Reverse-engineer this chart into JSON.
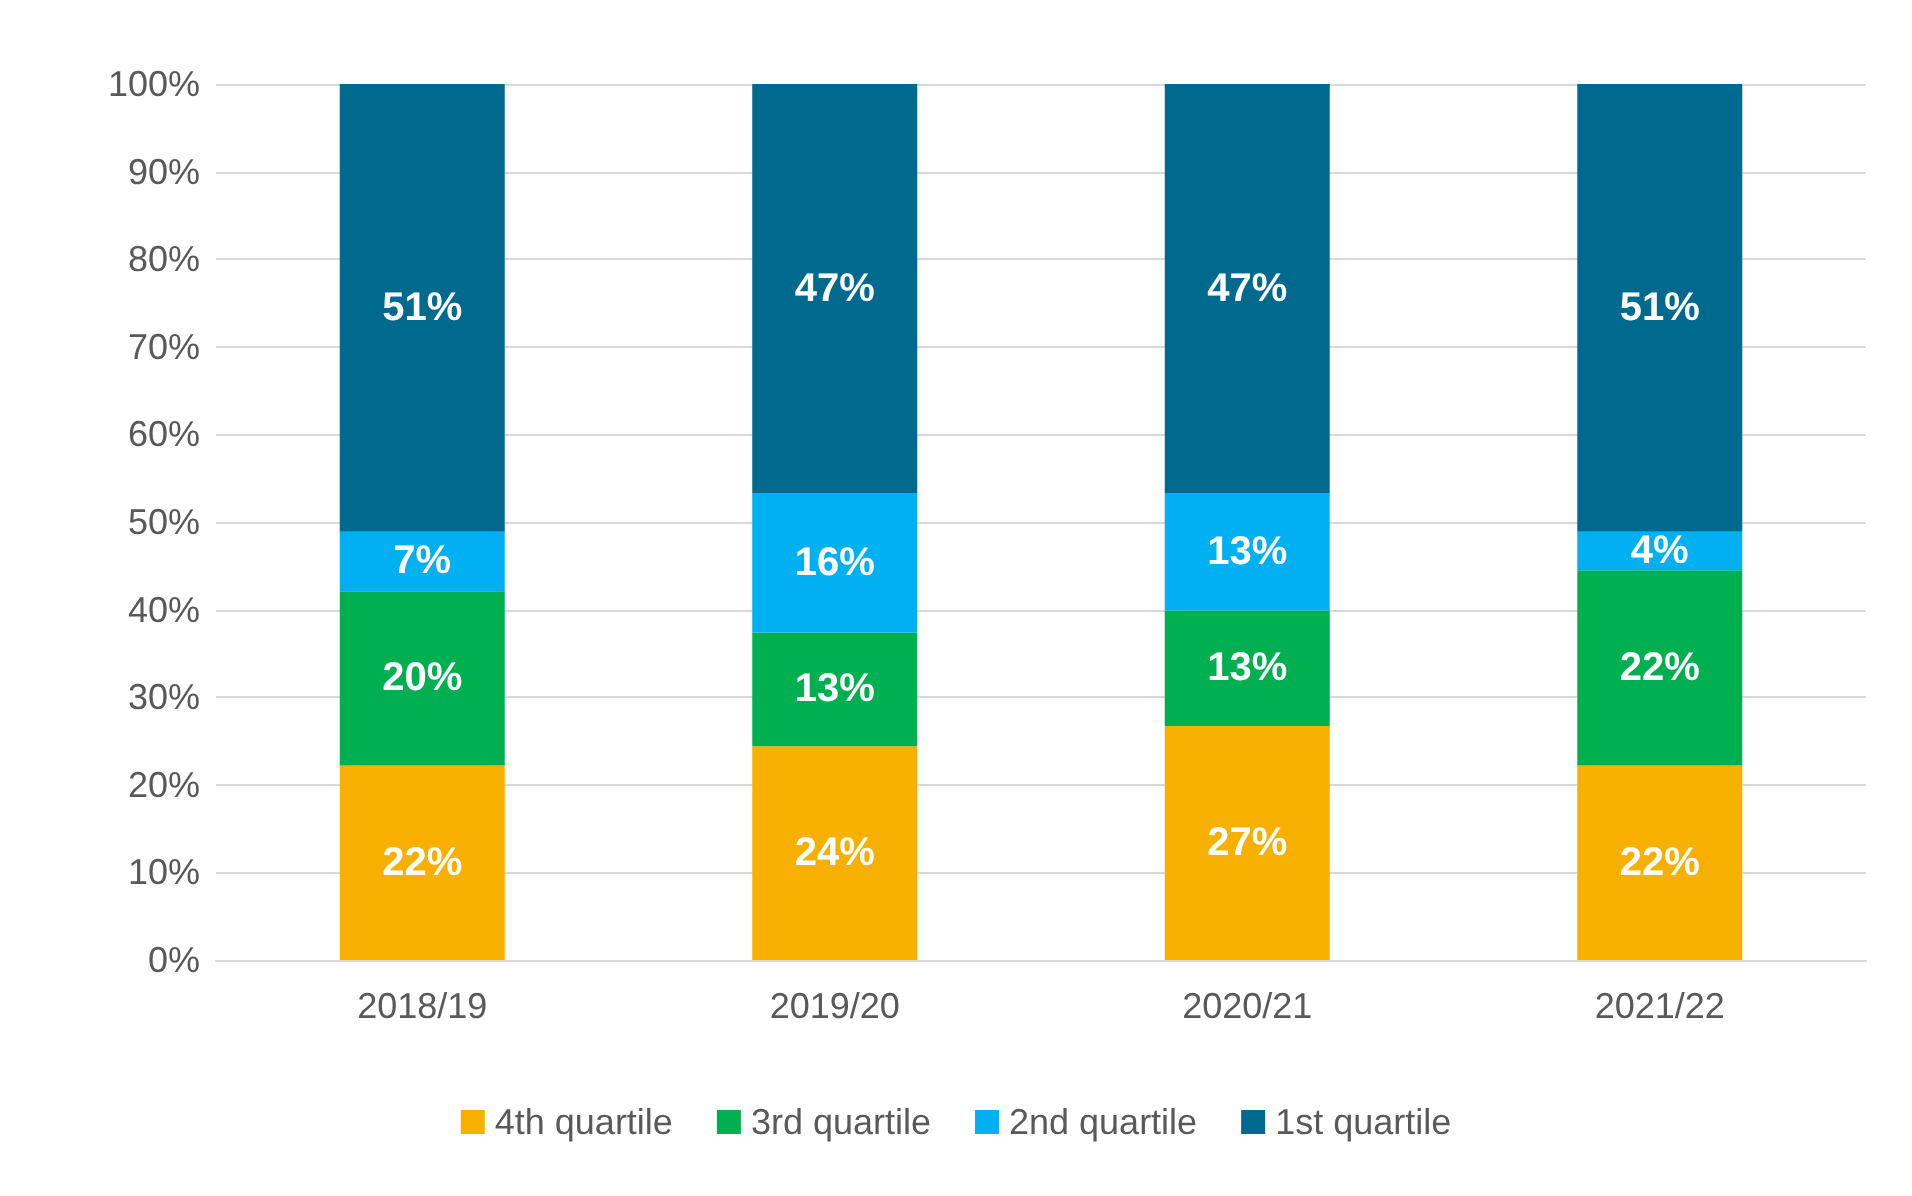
{
  "chart_data": {
    "type": "bar",
    "stacked": true,
    "categories": [
      "2018/19",
      "2019/20",
      "2020/21",
      "2021/22"
    ],
    "series": [
      {
        "name": "4th quartile",
        "color": "#f7b000",
        "values": [
          22.2,
          24.4,
          26.7,
          22.2
        ],
        "value_labels": [
          "22%",
          "24%",
          "27%",
          "22%"
        ]
      },
      {
        "name": "3rd quartile",
        "color": "#00b050",
        "values": [
          19.9,
          13.0,
          13.2,
          22.3
        ],
        "value_labels": [
          "20%",
          "13%",
          "13%",
          "22%"
        ]
      },
      {
        "name": "2nd quartile",
        "color": "#00b0f0",
        "values": [
          6.8,
          15.9,
          13.4,
          4.4
        ],
        "value_labels": [
          "7%",
          "16%",
          "13%",
          "4%"
        ]
      },
      {
        "name": "1st quartile",
        "color": "#006a8e",
        "values": [
          51.1,
          46.7,
          46.7,
          51.1
        ],
        "value_labels": [
          "51%",
          "47%",
          "47%",
          "51%"
        ]
      }
    ],
    "ylim": [
      0,
      100
    ],
    "yticks": [
      {
        "value": 0,
        "label": "0%"
      },
      {
        "value": 10,
        "label": "10%"
      },
      {
        "value": 20,
        "label": "20%"
      },
      {
        "value": 30,
        "label": "30%"
      },
      {
        "value": 40,
        "label": "40%"
      },
      {
        "value": 50,
        "label": "50%"
      },
      {
        "value": 60,
        "label": "60%"
      },
      {
        "value": 70,
        "label": "70%"
      },
      {
        "value": 80,
        "label": "80%"
      },
      {
        "value": 90,
        "label": "90%"
      },
      {
        "value": 100,
        "label": "100%"
      }
    ],
    "grid": "y",
    "legend": "bottom"
  }
}
